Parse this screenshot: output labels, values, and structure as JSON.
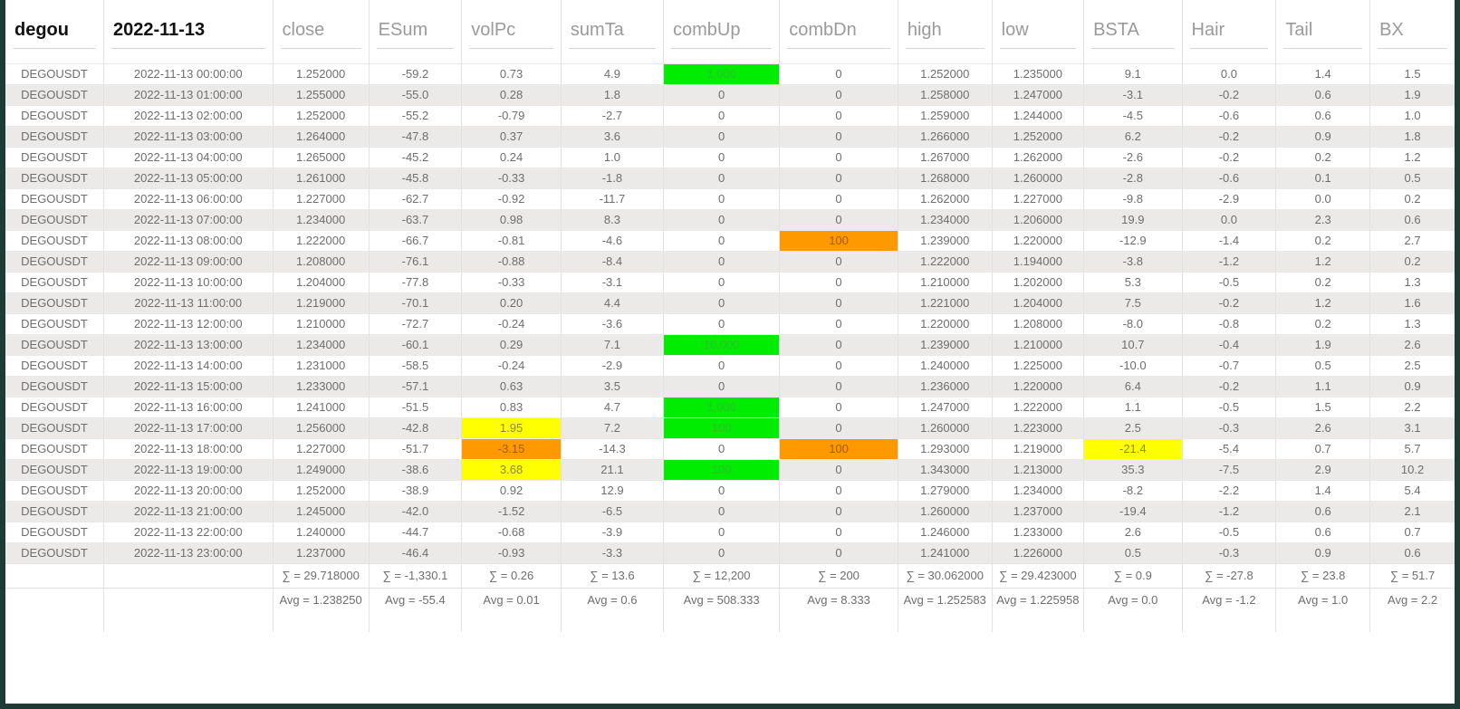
{
  "header": {
    "symbol_filter": "degou",
    "date_filter": "2022-11-13",
    "columns": [
      "close",
      "ESum",
      "volPc",
      "sumTa",
      "combUp",
      "combDn",
      "high",
      "low",
      "BSTA",
      "Hair",
      "Tail",
      "BX"
    ]
  },
  "highlight_colors": {
    "green": "#00ec00",
    "yellow": "#ffff00",
    "orange": "#ff9900"
  },
  "rows": [
    {
      "symbol": "DEGOUSDT",
      "time": "2022-11-13 00:00:00",
      "close": "1.252000",
      "ESum": "-59.2",
      "volPc": "0.73",
      "sumTa": "4.9",
      "combUp": "1,000",
      "combDn": "0",
      "high": "1.252000",
      "low": "1.235000",
      "BSTA": "9.1",
      "Hair": "0.0",
      "Tail": "1.4",
      "BX": "1.5",
      "hl": {
        "combUp": "green"
      }
    },
    {
      "symbol": "DEGOUSDT",
      "time": "2022-11-13 01:00:00",
      "close": "1.255000",
      "ESum": "-55.0",
      "volPc": "0.28",
      "sumTa": "1.8",
      "combUp": "0",
      "combDn": "0",
      "high": "1.258000",
      "low": "1.247000",
      "BSTA": "-3.1",
      "Hair": "-0.2",
      "Tail": "0.6",
      "BX": "1.9",
      "hl": {}
    },
    {
      "symbol": "DEGOUSDT",
      "time": "2022-11-13 02:00:00",
      "close": "1.252000",
      "ESum": "-55.2",
      "volPc": "-0.79",
      "sumTa": "-2.7",
      "combUp": "0",
      "combDn": "0",
      "high": "1.259000",
      "low": "1.244000",
      "BSTA": "-4.5",
      "Hair": "-0.6",
      "Tail": "0.6",
      "BX": "1.0",
      "hl": {}
    },
    {
      "symbol": "DEGOUSDT",
      "time": "2022-11-13 03:00:00",
      "close": "1.264000",
      "ESum": "-47.8",
      "volPc": "0.37",
      "sumTa": "3.6",
      "combUp": "0",
      "combDn": "0",
      "high": "1.266000",
      "low": "1.252000",
      "BSTA": "6.2",
      "Hair": "-0.2",
      "Tail": "0.9",
      "BX": "1.8",
      "hl": {}
    },
    {
      "symbol": "DEGOUSDT",
      "time": "2022-11-13 04:00:00",
      "close": "1.265000",
      "ESum": "-45.2",
      "volPc": "0.24",
      "sumTa": "1.0",
      "combUp": "0",
      "combDn": "0",
      "high": "1.267000",
      "low": "1.262000",
      "BSTA": "-2.6",
      "Hair": "-0.2",
      "Tail": "0.2",
      "BX": "1.2",
      "hl": {}
    },
    {
      "symbol": "DEGOUSDT",
      "time": "2022-11-13 05:00:00",
      "close": "1.261000",
      "ESum": "-45.8",
      "volPc": "-0.33",
      "sumTa": "-1.8",
      "combUp": "0",
      "combDn": "0",
      "high": "1.268000",
      "low": "1.260000",
      "BSTA": "-2.8",
      "Hair": "-0.6",
      "Tail": "0.1",
      "BX": "0.5",
      "hl": {}
    },
    {
      "symbol": "DEGOUSDT",
      "time": "2022-11-13 06:00:00",
      "close": "1.227000",
      "ESum": "-62.7",
      "volPc": "-0.92",
      "sumTa": "-11.7",
      "combUp": "0",
      "combDn": "0",
      "high": "1.262000",
      "low": "1.227000",
      "BSTA": "-9.8",
      "Hair": "-2.9",
      "Tail": "0.0",
      "BX": "0.2",
      "hl": {}
    },
    {
      "symbol": "DEGOUSDT",
      "time": "2022-11-13 07:00:00",
      "close": "1.234000",
      "ESum": "-63.7",
      "volPc": "0.98",
      "sumTa": "8.3",
      "combUp": "0",
      "combDn": "0",
      "high": "1.234000",
      "low": "1.206000",
      "BSTA": "19.9",
      "Hair": "0.0",
      "Tail": "2.3",
      "BX": "0.6",
      "hl": {}
    },
    {
      "symbol": "DEGOUSDT",
      "time": "2022-11-13 08:00:00",
      "close": "1.222000",
      "ESum": "-66.7",
      "volPc": "-0.81",
      "sumTa": "-4.6",
      "combUp": "0",
      "combDn": "100",
      "high": "1.239000",
      "low": "1.220000",
      "BSTA": "-12.9",
      "Hair": "-1.4",
      "Tail": "0.2",
      "BX": "2.7",
      "hl": {
        "combDn": "orange"
      }
    },
    {
      "symbol": "DEGOUSDT",
      "time": "2022-11-13 09:00:00",
      "close": "1.208000",
      "ESum": "-76.1",
      "volPc": "-0.88",
      "sumTa": "-8.4",
      "combUp": "0",
      "combDn": "0",
      "high": "1.222000",
      "low": "1.194000",
      "BSTA": "-3.8",
      "Hair": "-1.2",
      "Tail": "1.2",
      "BX": "0.2",
      "hl": {}
    },
    {
      "symbol": "DEGOUSDT",
      "time": "2022-11-13 10:00:00",
      "close": "1.204000",
      "ESum": "-77.8",
      "volPc": "-0.33",
      "sumTa": "-3.1",
      "combUp": "0",
      "combDn": "0",
      "high": "1.210000",
      "low": "1.202000",
      "BSTA": "5.3",
      "Hair": "-0.5",
      "Tail": "0.2",
      "BX": "1.3",
      "hl": {}
    },
    {
      "symbol": "DEGOUSDT",
      "time": "2022-11-13 11:00:00",
      "close": "1.219000",
      "ESum": "-70.1",
      "volPc": "0.20",
      "sumTa": "4.4",
      "combUp": "0",
      "combDn": "0",
      "high": "1.221000",
      "low": "1.204000",
      "BSTA": "7.5",
      "Hair": "-0.2",
      "Tail": "1.2",
      "BX": "1.6",
      "hl": {}
    },
    {
      "symbol": "DEGOUSDT",
      "time": "2022-11-13 12:00:00",
      "close": "1.210000",
      "ESum": "-72.7",
      "volPc": "-0.24",
      "sumTa": "-3.6",
      "combUp": "0",
      "combDn": "0",
      "high": "1.220000",
      "low": "1.208000",
      "BSTA": "-8.0",
      "Hair": "-0.8",
      "Tail": "0.2",
      "BX": "1.3",
      "hl": {}
    },
    {
      "symbol": "DEGOUSDT",
      "time": "2022-11-13 13:00:00",
      "close": "1.234000",
      "ESum": "-60.1",
      "volPc": "0.29",
      "sumTa": "7.1",
      "combUp": "10,000",
      "combDn": "0",
      "high": "1.239000",
      "low": "1.210000",
      "BSTA": "10.7",
      "Hair": "-0.4",
      "Tail": "1.9",
      "BX": "2.6",
      "hl": {
        "combUp": "green"
      }
    },
    {
      "symbol": "DEGOUSDT",
      "time": "2022-11-13 14:00:00",
      "close": "1.231000",
      "ESum": "-58.5",
      "volPc": "-0.24",
      "sumTa": "-2.9",
      "combUp": "0",
      "combDn": "0",
      "high": "1.240000",
      "low": "1.225000",
      "BSTA": "-10.0",
      "Hair": "-0.7",
      "Tail": "0.5",
      "BX": "2.5",
      "hl": {}
    },
    {
      "symbol": "DEGOUSDT",
      "time": "2022-11-13 15:00:00",
      "close": "1.233000",
      "ESum": "-57.1",
      "volPc": "0.63",
      "sumTa": "3.5",
      "combUp": "0",
      "combDn": "0",
      "high": "1.236000",
      "low": "1.220000",
      "BSTA": "6.4",
      "Hair": "-0.2",
      "Tail": "1.1",
      "BX": "0.9",
      "hl": {}
    },
    {
      "symbol": "DEGOUSDT",
      "time": "2022-11-13 16:00:00",
      "close": "1.241000",
      "ESum": "-51.5",
      "volPc": "0.83",
      "sumTa": "4.7",
      "combUp": "1,000",
      "combDn": "0",
      "high": "1.247000",
      "low": "1.222000",
      "BSTA": "1.1",
      "Hair": "-0.5",
      "Tail": "1.5",
      "BX": "2.2",
      "hl": {
        "combUp": "green"
      }
    },
    {
      "symbol": "DEGOUSDT",
      "time": "2022-11-13 17:00:00",
      "close": "1.256000",
      "ESum": "-42.8",
      "volPc": "1.95",
      "sumTa": "7.2",
      "combUp": "100",
      "combDn": "0",
      "high": "1.260000",
      "low": "1.223000",
      "BSTA": "2.5",
      "Hair": "-0.3",
      "Tail": "2.6",
      "BX": "3.1",
      "hl": {
        "volPc": "yellow",
        "combUp": "green"
      }
    },
    {
      "symbol": "DEGOUSDT",
      "time": "2022-11-13 18:00:00",
      "close": "1.227000",
      "ESum": "-51.7",
      "volPc": "-3.15",
      "sumTa": "-14.3",
      "combUp": "0",
      "combDn": "100",
      "high": "1.293000",
      "low": "1.219000",
      "BSTA": "-21.4",
      "Hair": "-5.4",
      "Tail": "0.7",
      "BX": "5.7",
      "hl": {
        "volPc": "orange",
        "combDn": "orange",
        "BSTA": "yellow"
      }
    },
    {
      "symbol": "DEGOUSDT",
      "time": "2022-11-13 19:00:00",
      "close": "1.249000",
      "ESum": "-38.6",
      "volPc": "3.68",
      "sumTa": "21.1",
      "combUp": "100",
      "combDn": "0",
      "high": "1.343000",
      "low": "1.213000",
      "BSTA": "35.3",
      "Hair": "-7.5",
      "Tail": "2.9",
      "BX": "10.2",
      "hl": {
        "volPc": "yellow",
        "combUp": "green"
      }
    },
    {
      "symbol": "DEGOUSDT",
      "time": "2022-11-13 20:00:00",
      "close": "1.252000",
      "ESum": "-38.9",
      "volPc": "0.92",
      "sumTa": "12.9",
      "combUp": "0",
      "combDn": "0",
      "high": "1.279000",
      "low": "1.234000",
      "BSTA": "-8.2",
      "Hair": "-2.2",
      "Tail": "1.4",
      "BX": "5.4",
      "hl": {}
    },
    {
      "symbol": "DEGOUSDT",
      "time": "2022-11-13 21:00:00",
      "close": "1.245000",
      "ESum": "-42.0",
      "volPc": "-1.52",
      "sumTa": "-6.5",
      "combUp": "0",
      "combDn": "0",
      "high": "1.260000",
      "low": "1.237000",
      "BSTA": "-19.4",
      "Hair": "-1.2",
      "Tail": "0.6",
      "BX": "2.1",
      "hl": {}
    },
    {
      "symbol": "DEGOUSDT",
      "time": "2022-11-13 22:00:00",
      "close": "1.240000",
      "ESum": "-44.7",
      "volPc": "-0.68",
      "sumTa": "-3.9",
      "combUp": "0",
      "combDn": "0",
      "high": "1.246000",
      "low": "1.233000",
      "BSTA": "2.6",
      "Hair": "-0.5",
      "Tail": "0.6",
      "BX": "0.7",
      "hl": {}
    },
    {
      "symbol": "DEGOUSDT",
      "time": "2022-11-13 23:00:00",
      "close": "1.237000",
      "ESum": "-46.4",
      "volPc": "-0.93",
      "sumTa": "-3.3",
      "combUp": "0",
      "combDn": "0",
      "high": "1.241000",
      "low": "1.226000",
      "BSTA": "0.5",
      "Hair": "-0.3",
      "Tail": "0.9",
      "BX": "0.6",
      "hl": {}
    }
  ],
  "footer": {
    "sums": {
      "close": "∑ = 29.718000",
      "ESum": "∑ = -1,330.1",
      "volPc": "∑ = 0.26",
      "sumTa": "∑ = 13.6",
      "combUp": "∑ = 12,200",
      "combDn": "∑ = 200",
      "high": "∑ = 30.062000",
      "low": "∑ = 29.423000",
      "BSTA": "∑ = 0.9",
      "Hair": "∑ = -27.8",
      "Tail": "∑ = 23.8",
      "BX": "∑ = 51.7"
    },
    "avgs": {
      "close": "Avg = 1.238250",
      "ESum": "Avg = -55.4",
      "volPc": "Avg = 0.01",
      "sumTa": "Avg = 0.6",
      "combUp": "Avg = 508.333",
      "combDn": "Avg = 8.333",
      "high": "Avg = 1.252583",
      "low": "Avg = 1.225958",
      "BSTA": "Avg = 0.0",
      "Hair": "Avg = -1.2",
      "Tail": "Avg = 1.0",
      "BX": "Avg = 2.2"
    }
  }
}
